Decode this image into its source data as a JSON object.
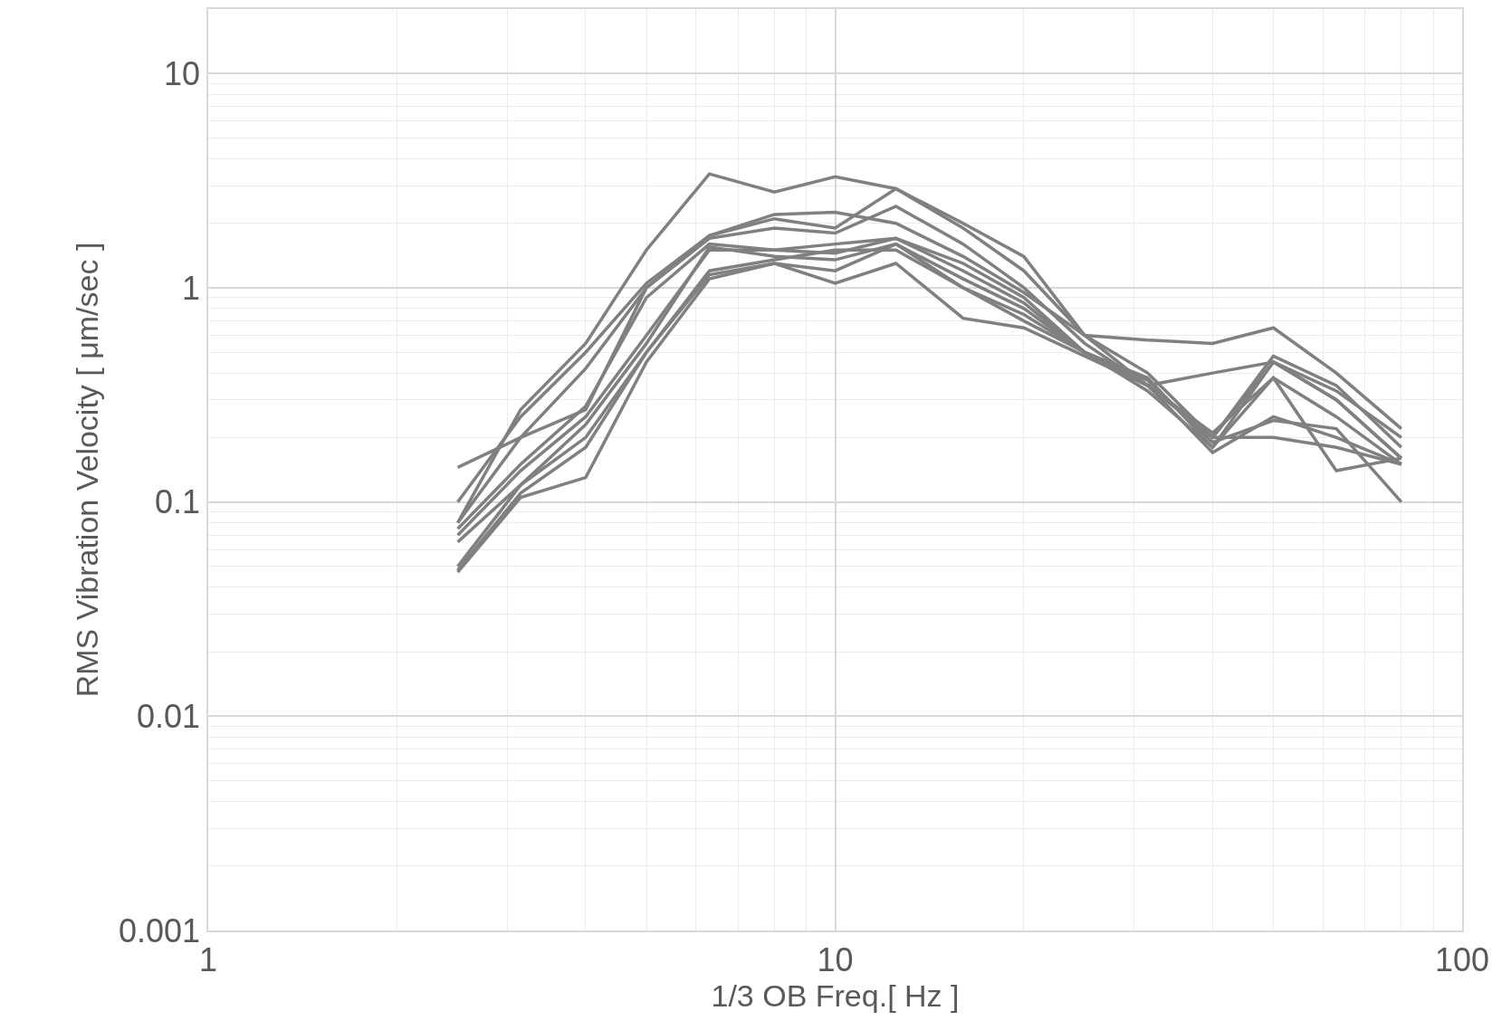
{
  "chart_data": {
    "type": "line",
    "xlabel": "1/3 OB Freq.[ Hz ]",
    "ylabel": "RMS Vibration Velocity [ μm/sec ]",
    "log": "xy",
    "grid": true,
    "marker": "none",
    "line_style": "solid",
    "xlim": [
      1,
      100
    ],
    "xticks": [
      1,
      10,
      100
    ],
    "ylim": [
      0.001,
      20
    ],
    "yticks": [
      0.001,
      0.01,
      0.1,
      1,
      10
    ],
    "x": [
      2.5,
      3.15,
      4,
      5,
      6.3,
      8,
      10,
      12.5,
      16,
      20,
      25,
      31.5,
      40,
      50,
      63,
      80
    ],
    "series": [
      {
        "color": "#808080",
        "values": [
          0.08,
          0.27,
          0.55,
          1.5,
          3.4,
          2.8,
          3.3,
          2.9,
          2.0,
          1.4,
          0.6,
          0.57,
          0.55,
          0.65,
          0.4,
          0.22
        ]
      },
      {
        "color": "#808080",
        "values": [
          0.145,
          0.2,
          0.27,
          1.0,
          1.75,
          2.2,
          2.25,
          2.0,
          1.4,
          0.95,
          0.6,
          0.4,
          0.2,
          0.45,
          0.33,
          0.2
        ]
      },
      {
        "color": "#808080",
        "values": [
          0.1,
          0.25,
          0.5,
          1.05,
          1.75,
          2.1,
          1.9,
          2.9,
          1.9,
          1.2,
          0.6,
          0.35,
          0.4,
          0.45,
          0.3,
          0.16
        ]
      },
      {
        "color": "#808080",
        "values": [
          0.08,
          0.2,
          0.42,
          1.0,
          1.7,
          1.9,
          1.8,
          2.4,
          1.6,
          1.0,
          0.55,
          0.35,
          0.2,
          0.48,
          0.35,
          0.18
        ]
      },
      {
        "color": "#808080",
        "values": [
          0.075,
          0.15,
          0.28,
          0.9,
          1.6,
          1.5,
          1.45,
          1.7,
          1.3,
          0.9,
          0.5,
          0.38,
          0.18,
          0.38,
          0.25,
          0.15
        ]
      },
      {
        "color": "#808080",
        "values": [
          0.07,
          0.14,
          0.25,
          0.6,
          1.5,
          1.5,
          1.6,
          1.7,
          1.2,
          0.85,
          0.5,
          0.35,
          0.17,
          0.25,
          0.2,
          0.15
        ]
      },
      {
        "color": "#808080",
        "values": [
          0.065,
          0.12,
          0.23,
          0.55,
          1.55,
          1.4,
          1.35,
          1.6,
          1.1,
          0.8,
          0.5,
          0.35,
          0.2,
          0.2,
          0.18,
          0.15
        ]
      },
      {
        "color": "#808080",
        "values": [
          0.048,
          0.11,
          0.18,
          0.5,
          1.2,
          1.35,
          1.5,
          1.5,
          1.0,
          0.75,
          0.5,
          0.33,
          0.18,
          0.45,
          0.3,
          0.16
        ]
      },
      {
        "color": "#808080",
        "values": [
          0.047,
          0.105,
          0.13,
          0.45,
          1.1,
          1.3,
          1.05,
          1.3,
          0.72,
          0.65,
          0.48,
          0.35,
          0.21,
          0.38,
          0.14,
          0.16
        ]
      },
      {
        "color": "#808080",
        "values": [
          0.05,
          0.12,
          0.2,
          0.5,
          1.15,
          1.3,
          1.2,
          1.6,
          1.0,
          0.7,
          0.5,
          0.37,
          0.19,
          0.24,
          0.22,
          0.1
        ]
      }
    ]
  }
}
